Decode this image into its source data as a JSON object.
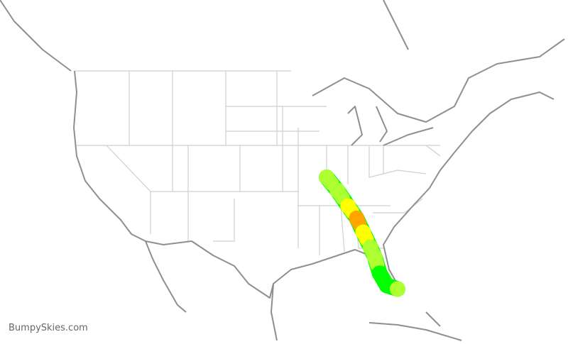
{
  "brand": {
    "text": "BumpySkies.com"
  },
  "route": {
    "base_color": "#00ff00",
    "waypoints": [
      {
        "lat": 38.6,
        "lon": -90.2,
        "color": "#adff2f"
      },
      {
        "lat": 37.1,
        "lon": -88.7,
        "color": "#adff2f"
      },
      {
        "lat": 35.3,
        "lon": -87.2,
        "color": "#ffff00"
      },
      {
        "lat": 33.9,
        "lon": -86.0,
        "color": "#ffa500"
      },
      {
        "lat": 32.3,
        "lon": -85.1,
        "color": "#ffff00"
      },
      {
        "lat": 30.6,
        "lon": -84.1,
        "color": "#adff2f"
      },
      {
        "lat": 29.5,
        "lon": -83.5,
        "color": "#adff2f"
      },
      {
        "lat": 27.6,
        "lon": -82.8,
        "color": "#00ff00"
      },
      {
        "lat": 26.2,
        "lon": -81.8,
        "color": "#00ff00"
      },
      {
        "lat": 25.8,
        "lon": -80.3,
        "color": "#adff2f"
      }
    ]
  },
  "colors": {
    "coastline": "#8f8f8f",
    "state_borders": "#cfcfcf"
  }
}
